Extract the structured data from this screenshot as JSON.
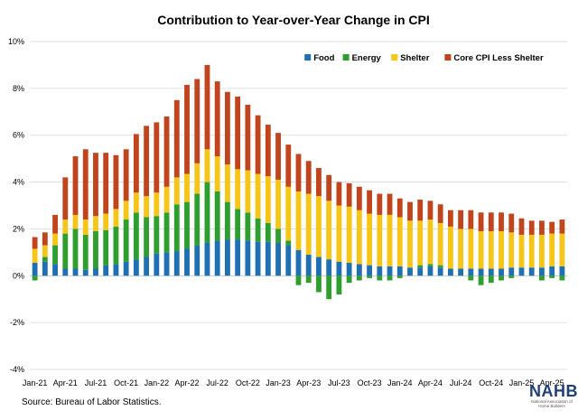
{
  "chart_data": {
    "type": "bar",
    "stacked": true,
    "title": "Contribution to Year-over-Year Change in CPI",
    "ylim": [
      -4,
      10
    ],
    "yticks": [
      "-4%",
      "-2%",
      "0%",
      "2%",
      "4%",
      "6%",
      "8%",
      "10%"
    ],
    "ytick_values": [
      -4,
      -2,
      0,
      2,
      4,
      6,
      8,
      10
    ],
    "grid": true,
    "legend_position": "top-right",
    "categories": [
      "Jan-21",
      "Feb-21",
      "Mar-21",
      "Apr-21",
      "May-21",
      "Jun-21",
      "Jul-21",
      "Aug-21",
      "Sep-21",
      "Oct-21",
      "Nov-21",
      "Dec-21",
      "Jan-22",
      "Feb-22",
      "Mar-22",
      "Apr-22",
      "May-22",
      "Jun-22",
      "Jul-22",
      "Aug-22",
      "Sep-22",
      "Oct-22",
      "Nov-22",
      "Dec-22",
      "Jan-23",
      "Feb-23",
      "Mar-23",
      "Apr-23",
      "May-23",
      "Jun-23",
      "Jul-23",
      "Aug-23",
      "Sep-23",
      "Oct-23",
      "Nov-23",
      "Dec-23",
      "Jan-24",
      "Feb-24",
      "Mar-24",
      "Apr-24",
      "May-24",
      "Jun-24",
      "Jul-24",
      "Aug-24",
      "Sep-24",
      "Oct-24",
      "Nov-24",
      "Dec-24",
      "Jan-25",
      "Feb-25",
      "Mar-25",
      "Apr-25",
      "May-25"
    ],
    "xtick_labels": [
      "Jan-21",
      "Apr-21",
      "Jul-21",
      "Oct-21",
      "Jan-22",
      "Apr-22",
      "Jul-22",
      "Oct-22",
      "Jan-23",
      "Apr-23",
      "Jul-23",
      "Oct-23",
      "Jan-24",
      "Apr-24",
      "Jul-24",
      "Oct-24",
      "Jan-25",
      "Apr-25"
    ],
    "series": [
      {
        "name": "Food",
        "color": "#1f6fb5",
        "values": [
          0.55,
          0.6,
          0.5,
          0.3,
          0.3,
          0.25,
          0.3,
          0.45,
          0.5,
          0.6,
          0.7,
          0.8,
          0.95,
          1.0,
          1.05,
          1.15,
          1.3,
          1.4,
          1.5,
          1.55,
          1.55,
          1.5,
          1.45,
          1.45,
          1.4,
          1.3,
          1.1,
          0.9,
          0.8,
          0.7,
          0.6,
          0.55,
          0.5,
          0.45,
          0.4,
          0.4,
          0.4,
          0.35,
          0.35,
          0.4,
          0.35,
          0.3,
          0.3,
          0.3,
          0.3,
          0.3,
          0.3,
          0.35,
          0.35,
          0.35,
          0.35,
          0.4,
          0.4
        ]
      },
      {
        "name": "Energy",
        "color": "#2e9e2e",
        "values": [
          -0.2,
          0.2,
          0.8,
          1.5,
          1.7,
          1.5,
          1.6,
          1.5,
          1.6,
          1.8,
          2.0,
          1.7,
          1.6,
          1.7,
          2.0,
          2.0,
          2.2,
          2.6,
          2.1,
          1.6,
          1.3,
          1.2,
          1.0,
          0.8,
          0.6,
          0.2,
          -0.4,
          -0.3,
          -0.7,
          -1.0,
          -0.8,
          -0.3,
          -0.2,
          -0.1,
          -0.2,
          -0.2,
          -0.1,
          0.0,
          0.1,
          0.1,
          0.1,
          0.0,
          0.0,
          -0.2,
          -0.4,
          -0.3,
          -0.2,
          -0.1,
          0.0,
          0.0,
          -0.2,
          -0.1,
          -0.2
        ]
      },
      {
        "name": "Shelter",
        "color": "#f5c518",
        "values": [
          0.6,
          0.5,
          0.5,
          0.6,
          0.6,
          0.65,
          0.65,
          0.7,
          0.75,
          0.8,
          0.85,
          0.9,
          1.0,
          1.1,
          1.15,
          1.2,
          1.3,
          1.4,
          1.5,
          1.6,
          1.7,
          1.8,
          1.9,
          2.0,
          2.1,
          2.3,
          2.5,
          2.6,
          2.6,
          2.5,
          2.4,
          2.4,
          2.3,
          2.2,
          2.2,
          2.2,
          2.1,
          2.0,
          1.9,
          1.9,
          1.8,
          1.8,
          1.7,
          1.7,
          1.6,
          1.6,
          1.6,
          1.5,
          1.4,
          1.4,
          1.4,
          1.4,
          1.4
        ]
      },
      {
        "name": "Core CPI Less Shelter",
        "color": "#c0451e",
        "values": [
          0.5,
          0.55,
          0.8,
          1.8,
          2.5,
          3.0,
          2.7,
          2.6,
          2.3,
          2.2,
          2.5,
          3.0,
          3.0,
          3.0,
          3.3,
          3.8,
          3.6,
          3.6,
          3.2,
          3.1,
          3.1,
          2.8,
          2.5,
          2.2,
          2.0,
          1.8,
          1.6,
          1.4,
          1.2,
          1.1,
          1.0,
          1.0,
          1.0,
          1.0,
          0.9,
          0.9,
          0.8,
          0.8,
          0.9,
          0.8,
          0.8,
          0.7,
          0.8,
          0.8,
          0.8,
          0.8,
          0.8,
          0.8,
          0.7,
          0.6,
          0.6,
          0.5,
          0.6
        ]
      }
    ]
  },
  "source": "Source: Bureau of Labor Statistics.",
  "logo": {
    "text": "NAHB",
    "subtext": "National Association of Home Builders"
  }
}
